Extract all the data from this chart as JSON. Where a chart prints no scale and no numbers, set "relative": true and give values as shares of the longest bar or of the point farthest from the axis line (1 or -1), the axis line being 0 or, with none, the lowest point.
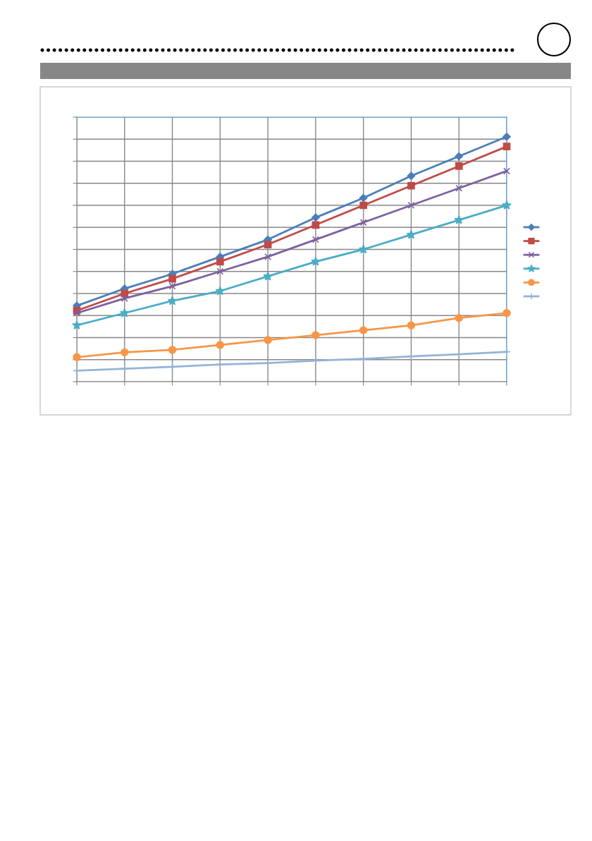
{
  "chart_data": {
    "type": "line",
    "relative": true,
    "grid": true,
    "categories": [
      null,
      null,
      null,
      null,
      null,
      null,
      null,
      null,
      null,
      null
    ],
    "series": [
      {
        "color": "#4a7ebb",
        "marker": "diamond",
        "values": [
          0.31,
          0.38,
          0.44,
          0.51,
          0.58,
          0.67,
          0.75,
          0.84,
          0.92,
          1
        ]
      },
      {
        "color": "#be4b48",
        "marker": "square",
        "values": [
          0.29,
          0.36,
          0.42,
          0.49,
          0.56,
          0.64,
          0.72,
          0.8,
          0.88,
          0.96
        ]
      },
      {
        "color": "#7d60a0",
        "marker": "cross",
        "values": [
          0.28,
          0.34,
          0.39,
          0.45,
          0.51,
          0.58,
          0.65,
          0.72,
          0.79,
          0.86
        ]
      },
      {
        "color": "#4bacc6",
        "marker": "star",
        "values": [
          0.23,
          0.28,
          0.33,
          0.37,
          0.43,
          0.49,
          0.54,
          0.6,
          0.66,
          0.72
        ]
      },
      {
        "color": "#f79646",
        "marker": "circle",
        "values": [
          0.1,
          0.12,
          0.13,
          0.15,
          0.17,
          0.19,
          0.21,
          0.23,
          0.26,
          0.28
        ]
      },
      {
        "color": "#95b3d7",
        "marker": "plus",
        "values": [
          0.045,
          0.053,
          0.061,
          0.07,
          0.076,
          0.086,
          0.093,
          0.103,
          0.112,
          0.122
        ]
      }
    ]
  }
}
